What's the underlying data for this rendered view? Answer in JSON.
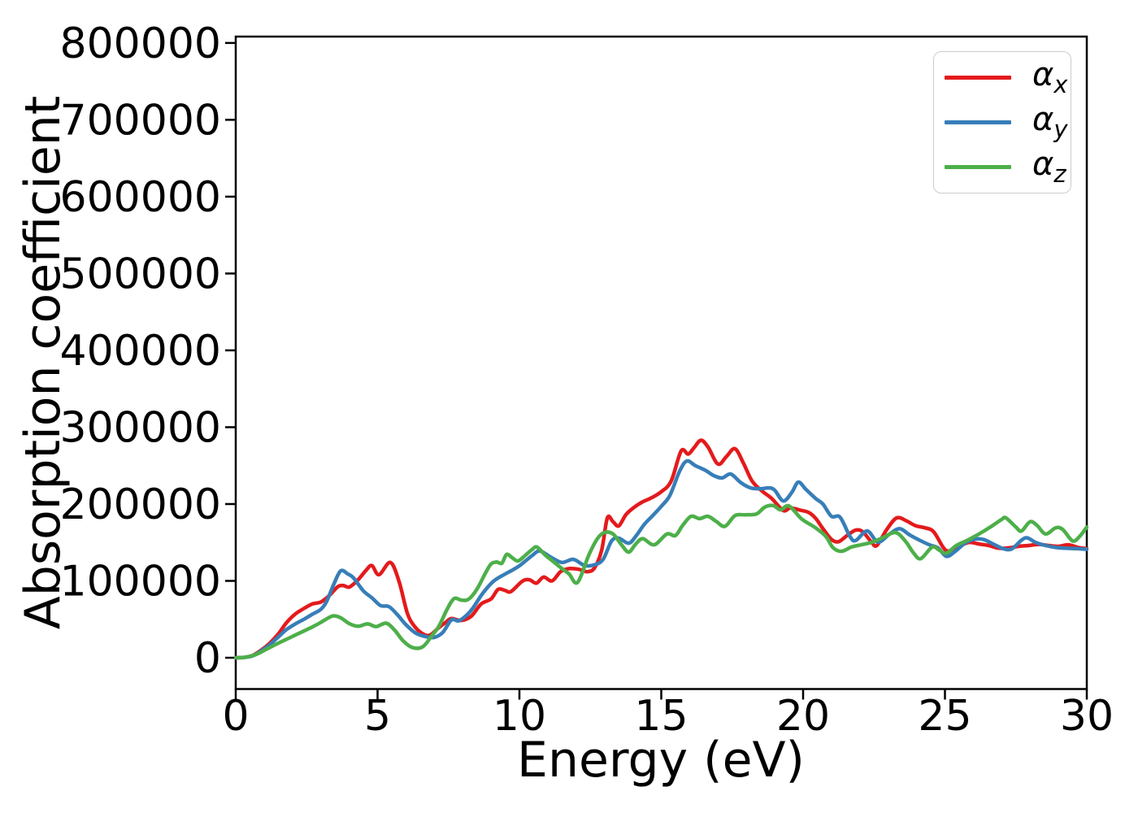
{
  "figure": {
    "background": "#ffffff",
    "border_color": "#000000"
  },
  "chart_data": {
    "type": "line",
    "title": "",
    "xlabel": "Energy (eV)",
    "ylabel": "Absorption coefficient",
    "xlim": [
      0,
      30
    ],
    "ylim": [
      -40700,
      808300
    ],
    "x_ticks": [
      0,
      5,
      10,
      15,
      20,
      25,
      30
    ],
    "y_ticks": [
      0,
      100000,
      200000,
      300000,
      400000,
      500000,
      600000,
      700000,
      800000
    ],
    "grid": false,
    "legend_position": "upper right",
    "series": [
      {
        "name": "alpha_x",
        "label_base": "α",
        "label_sub": "x",
        "color": "#e41a1c",
        "points": [
          [
            0.0,
            0
          ],
          [
            0.3,
            500
          ],
          [
            0.6,
            3000
          ],
          [
            0.9,
            10000
          ],
          [
            1.2,
            19000
          ],
          [
            1.5,
            31000
          ],
          [
            1.8,
            46000
          ],
          [
            2.1,
            57000
          ],
          [
            2.4,
            64000
          ],
          [
            2.7,
            70000
          ],
          [
            3.0,
            72500
          ],
          [
            3.3,
            81000
          ],
          [
            3.6,
            92500
          ],
          [
            3.8,
            94000
          ],
          [
            4.0,
            92000
          ],
          [
            4.3,
            101000
          ],
          [
            4.6,
            114000
          ],
          [
            4.8,
            120000
          ],
          [
            5.05,
            108000
          ],
          [
            5.45,
            124000
          ],
          [
            5.75,
            100000
          ],
          [
            6.05,
            58000
          ],
          [
            6.3,
            41000
          ],
          [
            6.6,
            31000
          ],
          [
            6.85,
            29500
          ],
          [
            7.15,
            39000
          ],
          [
            7.4,
            46000
          ],
          [
            7.6,
            51000
          ],
          [
            7.95,
            48500
          ],
          [
            8.3,
            54000
          ],
          [
            8.65,
            70000
          ],
          [
            9.0,
            76500
          ],
          [
            9.25,
            89000
          ],
          [
            9.5,
            87500
          ],
          [
            9.7,
            86000
          ],
          [
            10.1,
            99500
          ],
          [
            10.35,
            101500
          ],
          [
            10.6,
            97000
          ],
          [
            10.85,
            105000
          ],
          [
            11.15,
            100000
          ],
          [
            11.45,
            112000
          ],
          [
            11.75,
            116000
          ],
          [
            12.1,
            115000
          ],
          [
            12.4,
            112000
          ],
          [
            12.65,
            117000
          ],
          [
            12.9,
            140000
          ],
          [
            13.1,
            182000
          ],
          [
            13.3,
            177000
          ],
          [
            13.5,
            171500
          ],
          [
            13.75,
            186000
          ],
          [
            14.0,
            194500
          ],
          [
            14.3,
            202000
          ],
          [
            14.65,
            208000
          ],
          [
            15.0,
            216000
          ],
          [
            15.35,
            230000
          ],
          [
            15.7,
            269000
          ],
          [
            15.95,
            265000
          ],
          [
            16.15,
            273000
          ],
          [
            16.4,
            283000
          ],
          [
            16.65,
            274000
          ],
          [
            17.0,
            252000
          ],
          [
            17.3,
            262000
          ],
          [
            17.6,
            272000
          ],
          [
            17.9,
            253000
          ],
          [
            18.2,
            230000
          ],
          [
            18.55,
            217000
          ],
          [
            18.9,
            207000
          ],
          [
            19.3,
            191500
          ],
          [
            19.55,
            195000
          ],
          [
            19.9,
            192000
          ],
          [
            20.2,
            189000
          ],
          [
            20.45,
            181000
          ],
          [
            20.7,
            168000
          ],
          [
            21.0,
            154000
          ],
          [
            21.25,
            151000
          ],
          [
            21.55,
            159000
          ],
          [
            21.85,
            166000
          ],
          [
            22.1,
            164000
          ],
          [
            22.4,
            151000
          ],
          [
            22.6,
            146000
          ],
          [
            22.95,
            167000
          ],
          [
            23.3,
            182000
          ],
          [
            23.65,
            178000
          ],
          [
            23.95,
            172000
          ],
          [
            24.3,
            169000
          ],
          [
            24.6,
            164000
          ],
          [
            24.95,
            143000
          ],
          [
            25.15,
            139000
          ],
          [
            25.5,
            145000
          ],
          [
            25.85,
            150000
          ],
          [
            26.2,
            148000
          ],
          [
            26.55,
            146000
          ],
          [
            26.9,
            142500
          ],
          [
            27.25,
            143000
          ],
          [
            27.6,
            145000
          ],
          [
            27.95,
            146000
          ],
          [
            28.3,
            147500
          ],
          [
            28.65,
            146000
          ],
          [
            29.0,
            145000
          ],
          [
            29.35,
            147000
          ],
          [
            29.7,
            143500
          ],
          [
            30.0,
            142000
          ]
        ]
      },
      {
        "name": "alpha_y",
        "label_base": "α",
        "label_sub": "y",
        "color": "#377eb8",
        "points": [
          [
            0.0,
            0
          ],
          [
            0.3,
            500
          ],
          [
            0.6,
            2500
          ],
          [
            0.9,
            9000
          ],
          [
            1.2,
            17000
          ],
          [
            1.5,
            27000
          ],
          [
            1.8,
            37000
          ],
          [
            2.1,
            44000
          ],
          [
            2.4,
            50000
          ],
          [
            2.7,
            56500
          ],
          [
            3.0,
            63000
          ],
          [
            3.2,
            73000
          ],
          [
            3.45,
            95000
          ],
          [
            3.7,
            113000
          ],
          [
            3.95,
            109000
          ],
          [
            4.15,
            104000
          ],
          [
            4.5,
            87000
          ],
          [
            4.8,
            78000
          ],
          [
            5.1,
            68000
          ],
          [
            5.4,
            66500
          ],
          [
            5.7,
            56000
          ],
          [
            6.0,
            43000
          ],
          [
            6.35,
            32000
          ],
          [
            6.7,
            27500
          ],
          [
            7.0,
            26500
          ],
          [
            7.3,
            33000
          ],
          [
            7.6,
            49000
          ],
          [
            7.85,
            48000
          ],
          [
            8.1,
            54000
          ],
          [
            8.35,
            64000
          ],
          [
            8.7,
            83500
          ],
          [
            9.1,
            100000
          ],
          [
            9.55,
            110000
          ],
          [
            9.8,
            115000
          ],
          [
            10.05,
            121000
          ],
          [
            10.45,
            133000
          ],
          [
            10.72,
            139000
          ],
          [
            11.1,
            131000
          ],
          [
            11.5,
            124000
          ],
          [
            11.9,
            128000
          ],
          [
            12.3,
            120000
          ],
          [
            12.65,
            121000
          ],
          [
            12.95,
            128000
          ],
          [
            13.25,
            152000
          ],
          [
            13.5,
            155500
          ],
          [
            13.85,
            149000
          ],
          [
            14.1,
            158000
          ],
          [
            14.4,
            173500
          ],
          [
            14.7,
            185000
          ],
          [
            15.0,
            197000
          ],
          [
            15.3,
            211000
          ],
          [
            15.65,
            243000
          ],
          [
            15.9,
            256000
          ],
          [
            16.2,
            250000
          ],
          [
            16.55,
            244000
          ],
          [
            16.85,
            237000
          ],
          [
            17.15,
            234000
          ],
          [
            17.45,
            239000
          ],
          [
            17.8,
            228000
          ],
          [
            18.15,
            221000
          ],
          [
            18.5,
            220000
          ],
          [
            18.8,
            221000
          ],
          [
            19.0,
            218000
          ],
          [
            19.3,
            204000
          ],
          [
            19.6,
            215000
          ],
          [
            19.83,
            228500
          ],
          [
            20.1,
            219000
          ],
          [
            20.45,
            207000
          ],
          [
            20.7,
            200000
          ],
          [
            21.0,
            184000
          ],
          [
            21.3,
            183000
          ],
          [
            21.65,
            158000
          ],
          [
            21.85,
            152500
          ],
          [
            22.26,
            165000
          ],
          [
            22.64,
            150500
          ],
          [
            23.05,
            161000
          ],
          [
            23.4,
            168000
          ],
          [
            23.75,
            160000
          ],
          [
            24.1,
            153000
          ],
          [
            24.45,
            147000
          ],
          [
            24.75,
            143000
          ],
          [
            25.05,
            132000
          ],
          [
            25.35,
            138000
          ],
          [
            25.7,
            149000
          ],
          [
            26.0,
            154000
          ],
          [
            26.35,
            154000
          ],
          [
            26.7,
            148000
          ],
          [
            27.05,
            142000
          ],
          [
            27.35,
            141500
          ],
          [
            27.7,
            153000
          ],
          [
            27.9,
            156000
          ],
          [
            28.2,
            150000
          ],
          [
            28.55,
            146000
          ],
          [
            28.9,
            143500
          ],
          [
            29.25,
            142500
          ],
          [
            29.6,
            142000
          ],
          [
            30.0,
            141000
          ]
        ]
      },
      {
        "name": "alpha_z",
        "label_base": "α",
        "label_sub": "z",
        "color": "#4daf4a",
        "points": [
          [
            0.0,
            0
          ],
          [
            0.3,
            500
          ],
          [
            0.7,
            4000
          ],
          [
            1.1,
            11500
          ],
          [
            1.5,
            19000
          ],
          [
            1.9,
            26000
          ],
          [
            2.3,
            33000
          ],
          [
            2.7,
            40000
          ],
          [
            3.0,
            46000
          ],
          [
            3.25,
            51500
          ],
          [
            3.45,
            54500
          ],
          [
            3.7,
            52000
          ],
          [
            4.0,
            44500
          ],
          [
            4.3,
            41000
          ],
          [
            4.65,
            44000
          ],
          [
            4.95,
            40500
          ],
          [
            5.3,
            45000
          ],
          [
            5.6,
            36000
          ],
          [
            5.9,
            22000
          ],
          [
            6.25,
            13000
          ],
          [
            6.6,
            14500
          ],
          [
            6.9,
            28000
          ],
          [
            7.16,
            41000
          ],
          [
            7.45,
            63000
          ],
          [
            7.7,
            77000
          ],
          [
            7.95,
            75000
          ],
          [
            8.2,
            76000
          ],
          [
            8.5,
            89000
          ],
          [
            8.8,
            110000
          ],
          [
            9.0,
            122000
          ],
          [
            9.2,
            124500
          ],
          [
            9.38,
            123000
          ],
          [
            9.55,
            134500
          ],
          [
            9.75,
            130000
          ],
          [
            9.95,
            126000
          ],
          [
            10.2,
            133000
          ],
          [
            10.45,
            141000
          ],
          [
            10.62,
            144000
          ],
          [
            10.9,
            134000
          ],
          [
            11.2,
            125000
          ],
          [
            11.5,
            116000
          ],
          [
            11.75,
            109000
          ],
          [
            12.05,
            98000
          ],
          [
            12.45,
            134000
          ],
          [
            12.75,
            155000
          ],
          [
            13.0,
            163000
          ],
          [
            13.3,
            161000
          ],
          [
            13.6,
            147000
          ],
          [
            13.85,
            137500
          ],
          [
            14.1,
            148000
          ],
          [
            14.35,
            155000
          ],
          [
            14.75,
            147000
          ],
          [
            15.2,
            161000
          ],
          [
            15.5,
            159000
          ],
          [
            15.75,
            172000
          ],
          [
            16.05,
            184000
          ],
          [
            16.35,
            181000
          ],
          [
            16.65,
            184000
          ],
          [
            16.95,
            177000
          ],
          [
            17.25,
            171000
          ],
          [
            17.6,
            185000
          ],
          [
            17.95,
            186000
          ],
          [
            18.35,
            187000
          ],
          [
            18.65,
            196000
          ],
          [
            18.95,
            198000
          ],
          [
            19.2,
            192500
          ],
          [
            19.5,
            197500
          ],
          [
            19.95,
            180500
          ],
          [
            20.4,
            170000
          ],
          [
            20.8,
            158000
          ],
          [
            21.05,
            143500
          ],
          [
            21.35,
            138500
          ],
          [
            21.7,
            144000
          ],
          [
            22.05,
            147000
          ],
          [
            22.4,
            150000
          ],
          [
            22.8,
            156000
          ],
          [
            23.25,
            163000
          ],
          [
            23.6,
            152000
          ],
          [
            23.9,
            136000
          ],
          [
            24.15,
            129000
          ],
          [
            24.55,
            144000
          ],
          [
            24.8,
            140000
          ],
          [
            25.05,
            136000
          ],
          [
            25.4,
            146000
          ],
          [
            25.8,
            153000
          ],
          [
            26.2,
            161000
          ],
          [
            26.6,
            170000
          ],
          [
            27.0,
            180000
          ],
          [
            27.15,
            182000
          ],
          [
            27.5,
            170000
          ],
          [
            27.7,
            165000
          ],
          [
            28.0,
            177000
          ],
          [
            28.25,
            172000
          ],
          [
            28.55,
            161000
          ],
          [
            28.9,
            169000
          ],
          [
            29.15,
            167000
          ],
          [
            29.5,
            152000
          ],
          [
            29.75,
            158000
          ],
          [
            30.0,
            170000
          ]
        ]
      }
    ]
  },
  "legend": {
    "entries": [
      {
        "label_base": "α",
        "label_sub": "x",
        "color": "#e41a1c"
      },
      {
        "label_base": "α",
        "label_sub": "y",
        "color": "#377eb8"
      },
      {
        "label_base": "α",
        "label_sub": "z",
        "color": "#4daf4a"
      }
    ]
  }
}
